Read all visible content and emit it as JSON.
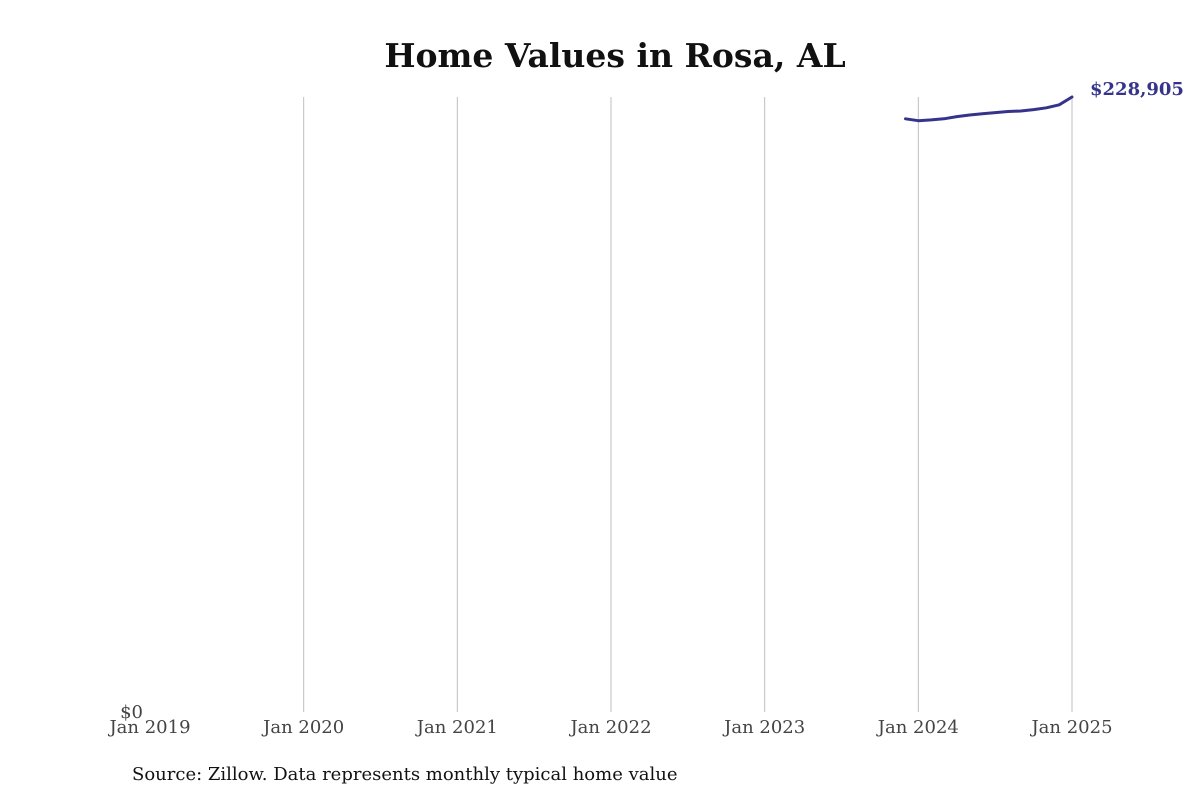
{
  "chart_data": {
    "type": "line",
    "title": "Home Values in Rosa, AL",
    "xlabel": "",
    "ylabel": "",
    "x_ticks": [
      "Jan 2019",
      "Jan 2020",
      "Jan 2021",
      "Jan 2022",
      "Jan 2023",
      "Jan 2024",
      "Jan 2025"
    ],
    "y_ticks": [
      "$0"
    ],
    "xlim": [
      "2019-01",
      "2025-01"
    ],
    "ylim": [
      0,
      228905
    ],
    "grid": "vertical",
    "series": [
      {
        "color": "#35348a",
        "x": [
          "2023-12",
          "2024-01",
          "2024-02",
          "2024-03",
          "2024-04",
          "2024-05",
          "2024-06",
          "2024-07",
          "2024-08",
          "2024-09",
          "2024-10",
          "2024-11",
          "2024-12",
          "2025-01"
        ],
        "values": [
          220800,
          220100,
          220400,
          220800,
          221600,
          222200,
          222700,
          223100,
          223500,
          223700,
          224200,
          224900,
          226000,
          228905
        ],
        "end_label": "$228,905"
      }
    ]
  },
  "footer": {
    "source": "Source: Zillow. Data represents monthly typical home value"
  }
}
